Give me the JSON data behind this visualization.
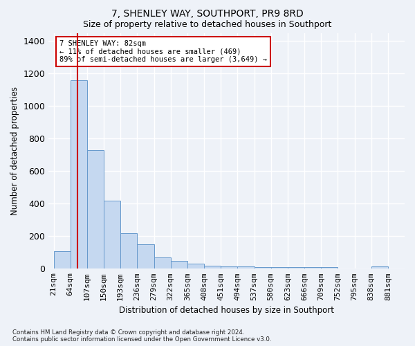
{
  "title": "7, SHENLEY WAY, SOUTHPORT, PR9 8RD",
  "subtitle": "Size of property relative to detached houses in Southport",
  "xlabel": "Distribution of detached houses by size in Southport",
  "ylabel": "Number of detached properties",
  "categories": [
    "21sqm",
    "64sqm",
    "107sqm",
    "150sqm",
    "193sqm",
    "236sqm",
    "279sqm",
    "322sqm",
    "365sqm",
    "408sqm",
    "451sqm",
    "494sqm",
    "537sqm",
    "580sqm",
    "623sqm",
    "666sqm",
    "709sqm",
    "752sqm",
    "795sqm",
    "838sqm",
    "881sqm"
  ],
  "bar_values": [
    107,
    1160,
    730,
    420,
    218,
    150,
    70,
    48,
    30,
    18,
    15,
    13,
    10,
    10,
    10,
    10,
    10,
    0,
    0,
    13,
    0
  ],
  "bar_color": "#c5d8f0",
  "bar_edge_color": "#6699cc",
  "annotation_text": "7 SHENLEY WAY: 82sqm\n← 11% of detached houses are smaller (469)\n89% of semi-detached houses are larger (3,649) →",
  "annotation_border_color": "#cc0000",
  "property_line_x": 0.535,
  "ylim": [
    0,
    1450
  ],
  "yticks": [
    0,
    200,
    400,
    600,
    800,
    1000,
    1200,
    1400
  ],
  "fig_bg": "#eef2f8",
  "plot_bg": "#eef2f8",
  "grid_color": "#ffffff",
  "title_fontsize": 10,
  "subtitle_fontsize": 9,
  "footnote": "Contains HM Land Registry data © Crown copyright and database right 2024.\nContains public sector information licensed under the Open Government Licence v3.0."
}
